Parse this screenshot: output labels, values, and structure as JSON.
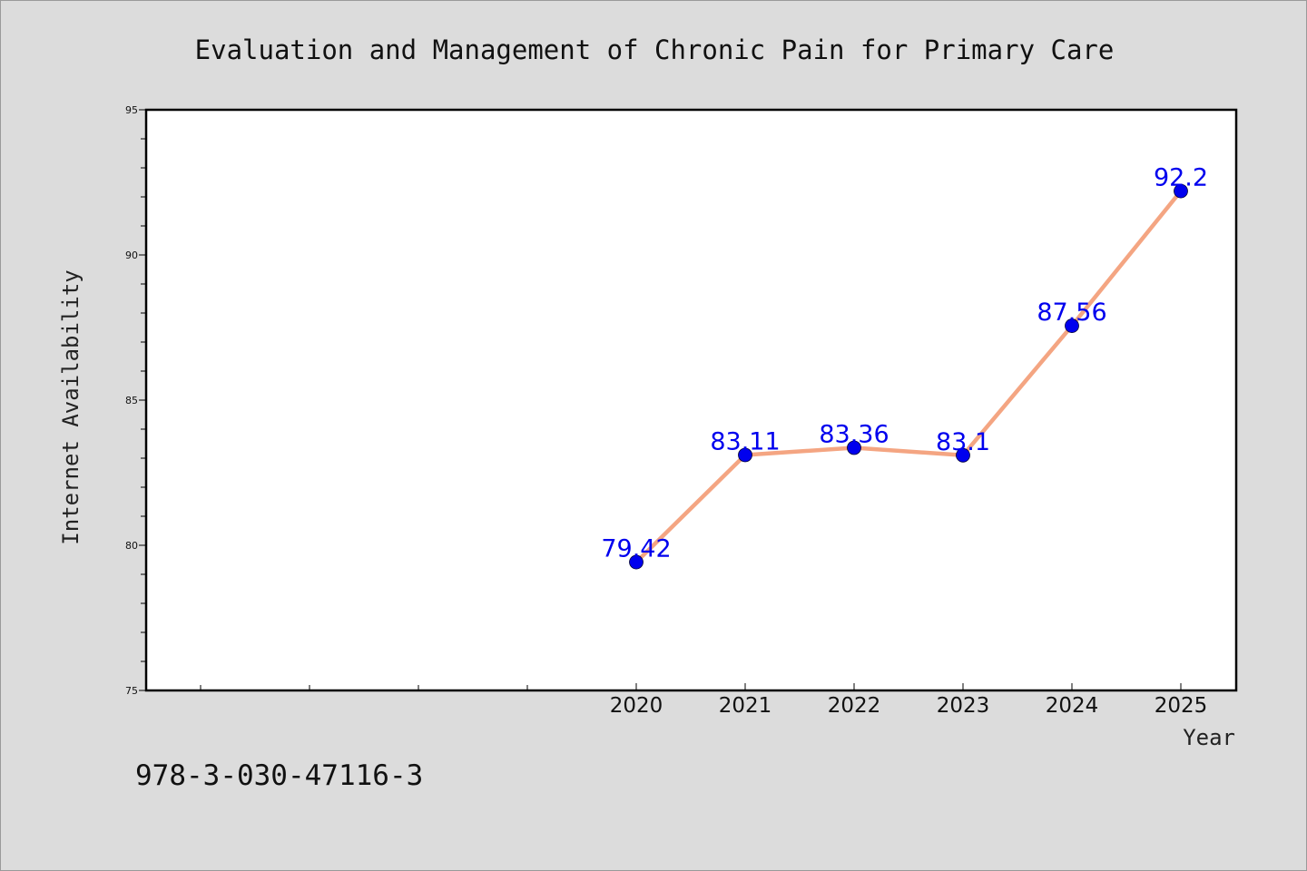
{
  "chart_data": {
    "type": "line",
    "title": "Evaluation and Management of Chronic Pain for Primary Care",
    "xlabel": "Year",
    "ylabel": "Internet Availability",
    "x": [
      "2020",
      "2021",
      "2022",
      "2023",
      "2024",
      "2025"
    ],
    "series": [
      {
        "values": [
          79.42,
          83.11,
          83.36,
          83.1,
          87.56,
          92.2
        ],
        "labels": [
          "79.42",
          "83.11",
          "83.36",
          "83.1",
          "87.56",
          "92.2"
        ]
      }
    ],
    "ylim": [
      75,
      95
    ],
    "yticks": [
      "75",
      "80",
      "85",
      "90",
      "95"
    ],
    "grid": false,
    "legend": "none",
    "colors": {
      "line": "#f4a582",
      "marker": "#0000ee",
      "data_label": "#0000ee",
      "background": "#dcdcdc",
      "plot_background": "#ffffff"
    }
  },
  "footer": {
    "isbn": "978-3-030-47116-3"
  }
}
